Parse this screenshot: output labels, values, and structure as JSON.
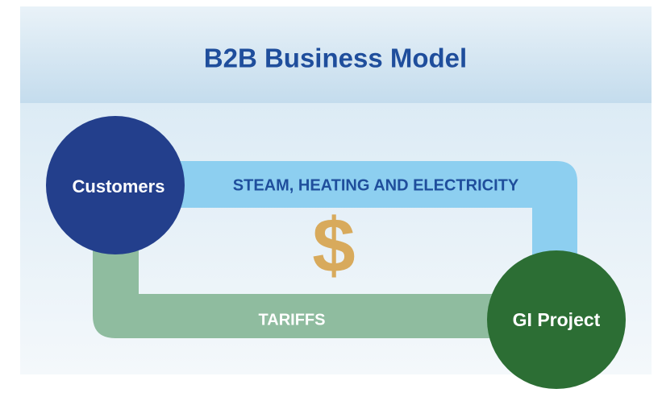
{
  "header": {
    "title": "B2B Business Model"
  },
  "nodes": [
    {
      "label": "Customers"
    },
    {
      "label": "GI Project"
    }
  ],
  "flows": [
    {
      "label": "STEAM, HEATING AND ELECTRICITY"
    },
    {
      "label": "TARIFFS"
    }
  ],
  "symbol": "$"
}
